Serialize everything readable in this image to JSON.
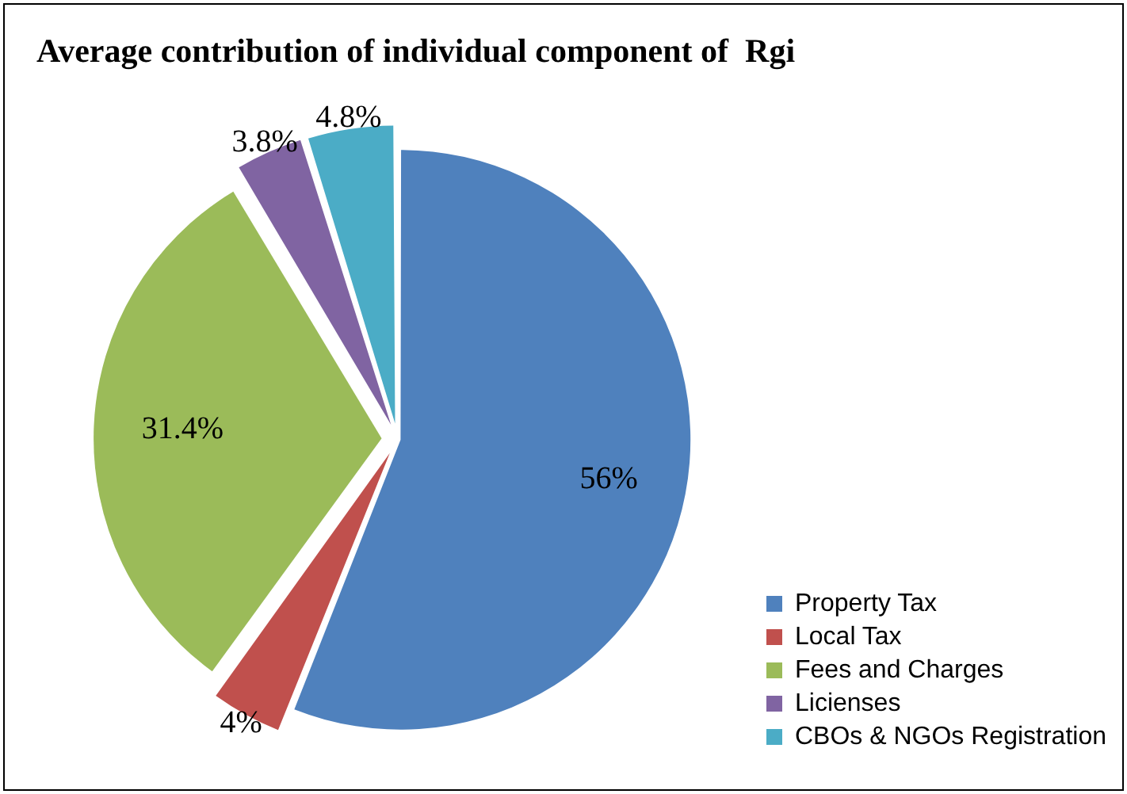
{
  "chart_data": {
    "type": "pie",
    "title": "Average contribution of individual component of  Rgi",
    "categories": [
      "Property Tax",
      "Local Tax",
      "Fees and Charges",
      "Licienses",
      "CBOs & NGOs Registration"
    ],
    "values": [
      56,
      4,
      31.4,
      3.8,
      4.8
    ],
    "colors": [
      "#4f81bd",
      "#c0504d",
      "#9bbb59",
      "#8064a2",
      "#4bacc6"
    ],
    "value_labels": [
      "56%",
      "4%",
      "31.4%",
      "3.8%",
      "4.8%"
    ],
    "legend": "right"
  }
}
